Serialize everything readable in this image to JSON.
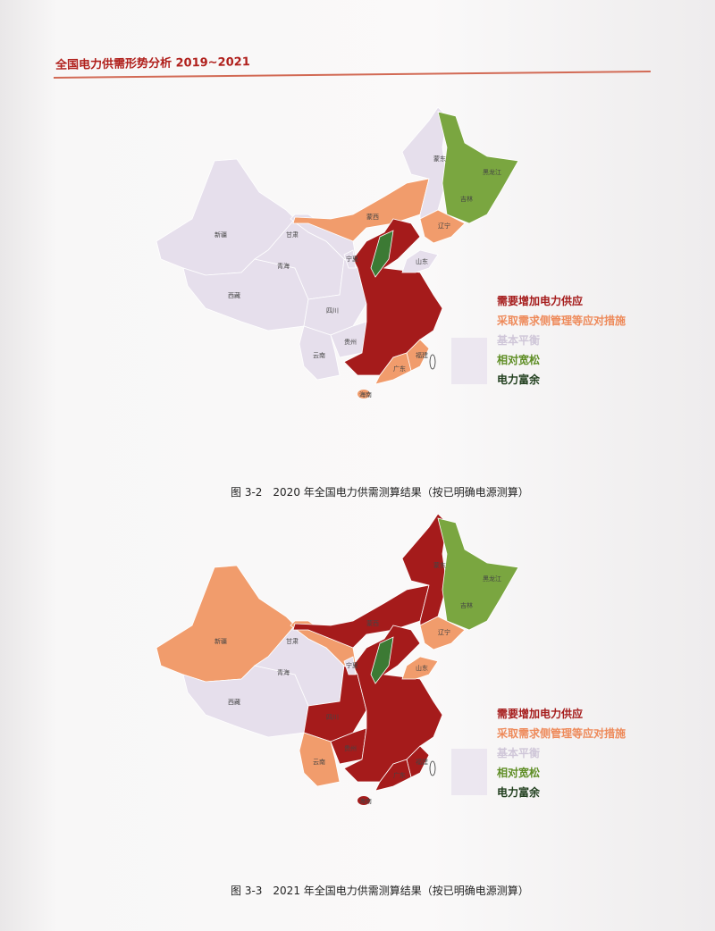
{
  "header": {
    "running_title": "全国电力供需形势分析 2019~2021"
  },
  "legend": {
    "items": [
      {
        "label": "需要增加电力供应",
        "color": "#a51b1b"
      },
      {
        "label": "采取需求侧管理等应对措施",
        "color": "#ee8a5a"
      },
      {
        "label": "基本平衡",
        "color": "#cfc6d8"
      },
      {
        "label": "相对宽松",
        "color": "#5e8d24"
      },
      {
        "label": "电力富余",
        "color": "#1f3d1c"
      }
    ]
  },
  "fill_colors": {
    "red": "#a51b1b",
    "orange": "#f19c6c",
    "light": "#e6dfec",
    "green": "#7aa640",
    "darkgreen": "#3c7a34"
  },
  "province_labels": {
    "xinjiang": "新疆",
    "tibet": "西藏",
    "qinghai": "青海",
    "gansu": "甘肃",
    "sichuan": "四川",
    "yunnan": "云南",
    "guizhou": "贵州",
    "mengxi": "蒙西",
    "mengdong": "蒙东",
    "heilongjiang": "黑龙江",
    "jilin": "吉林",
    "liaoning": "辽宁",
    "shandong": "山东",
    "fujian": "福建",
    "guangdong": "广东",
    "ningxia": "宁夏",
    "hainan": "海南"
  },
  "maps": [
    {
      "caption": "图 3-2　2020 年全国电力供需测算结果（按已明确电源测算）",
      "regions": {
        "xinjiang": "light",
        "tibet": "light",
        "qinghai": "light",
        "gansu": "light",
        "sichuan": "light",
        "yunnan": "light",
        "guizhou": "light",
        "mengxi": "orange",
        "mengdong": "light",
        "northeast": "green",
        "liaoning": "orange",
        "central": "red",
        "shanxi": "darkgreen",
        "shandong": "light",
        "fujian": "orange",
        "guangdong": "orange",
        "hainan": "orange",
        "ningxia": "light"
      }
    },
    {
      "caption": "图 3-3　2021 年全国电力供需测算结果（按已明确电源测算）",
      "regions": {
        "xinjiang": "orange",
        "tibet": "light",
        "qinghai": "light",
        "gansu": "orange",
        "sichuan": "red",
        "yunnan": "orange",
        "guizhou": "red",
        "mengxi": "red",
        "mengdong": "red",
        "northeast": "green",
        "liaoning": "orange",
        "central": "red",
        "shanxi": "darkgreen",
        "shandong": "orange",
        "fujian": "red",
        "guangdong": "red",
        "hainan": "red",
        "ningxia": "light"
      }
    }
  ]
}
